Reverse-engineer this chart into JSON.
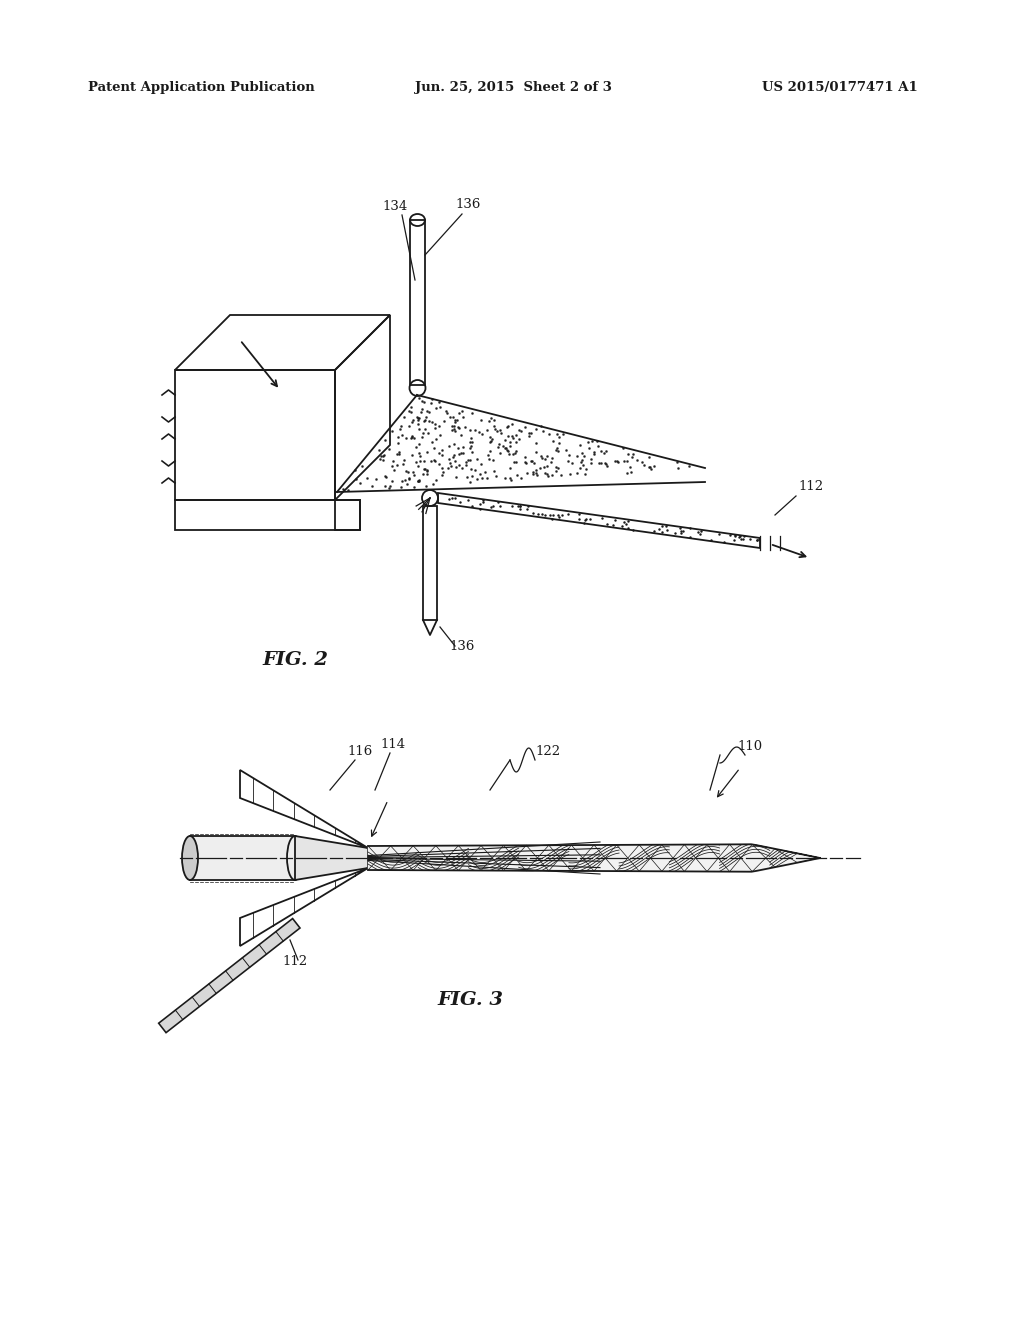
{
  "bg_color": "#ffffff",
  "line_color": "#1a1a1a",
  "header_left": "Patent Application Publication",
  "header_center": "Jun. 25, 2015  Sheet 2 of 3",
  "header_right": "US 2015/0177471 A1",
  "fig2_label": "FIG. 2",
  "fig3_label": "FIG. 3"
}
